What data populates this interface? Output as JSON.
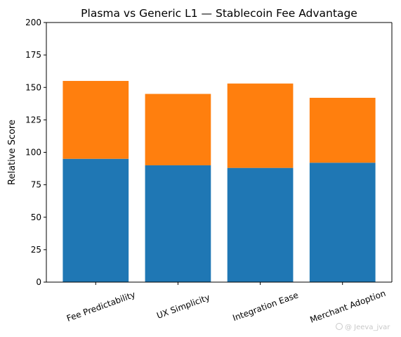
{
  "chart_data": {
    "type": "bar",
    "stacked": true,
    "title": "Plasma vs Generic L1 — Stablecoin Fee Advantage",
    "xlabel": "",
    "ylabel": "Relative Score",
    "categories": [
      "Fee Predictability",
      "UX Simplicity",
      "Integration Ease",
      "Merchant Adoption"
    ],
    "series": [
      {
        "values": [
          95,
          90,
          88,
          92
        ],
        "color": "#1f77b4"
      },
      {
        "values": [
          60,
          55,
          65,
          50
        ],
        "color": "#ff7f0e"
      }
    ],
    "ylim": [
      0,
      200
    ],
    "yticks": [
      0,
      25,
      50,
      75,
      100,
      125,
      150,
      175,
      200
    ],
    "xtick_rotation": -20,
    "grid": false,
    "legend": "none"
  },
  "watermark": {
    "text": "@ Jeeva_jvar"
  }
}
